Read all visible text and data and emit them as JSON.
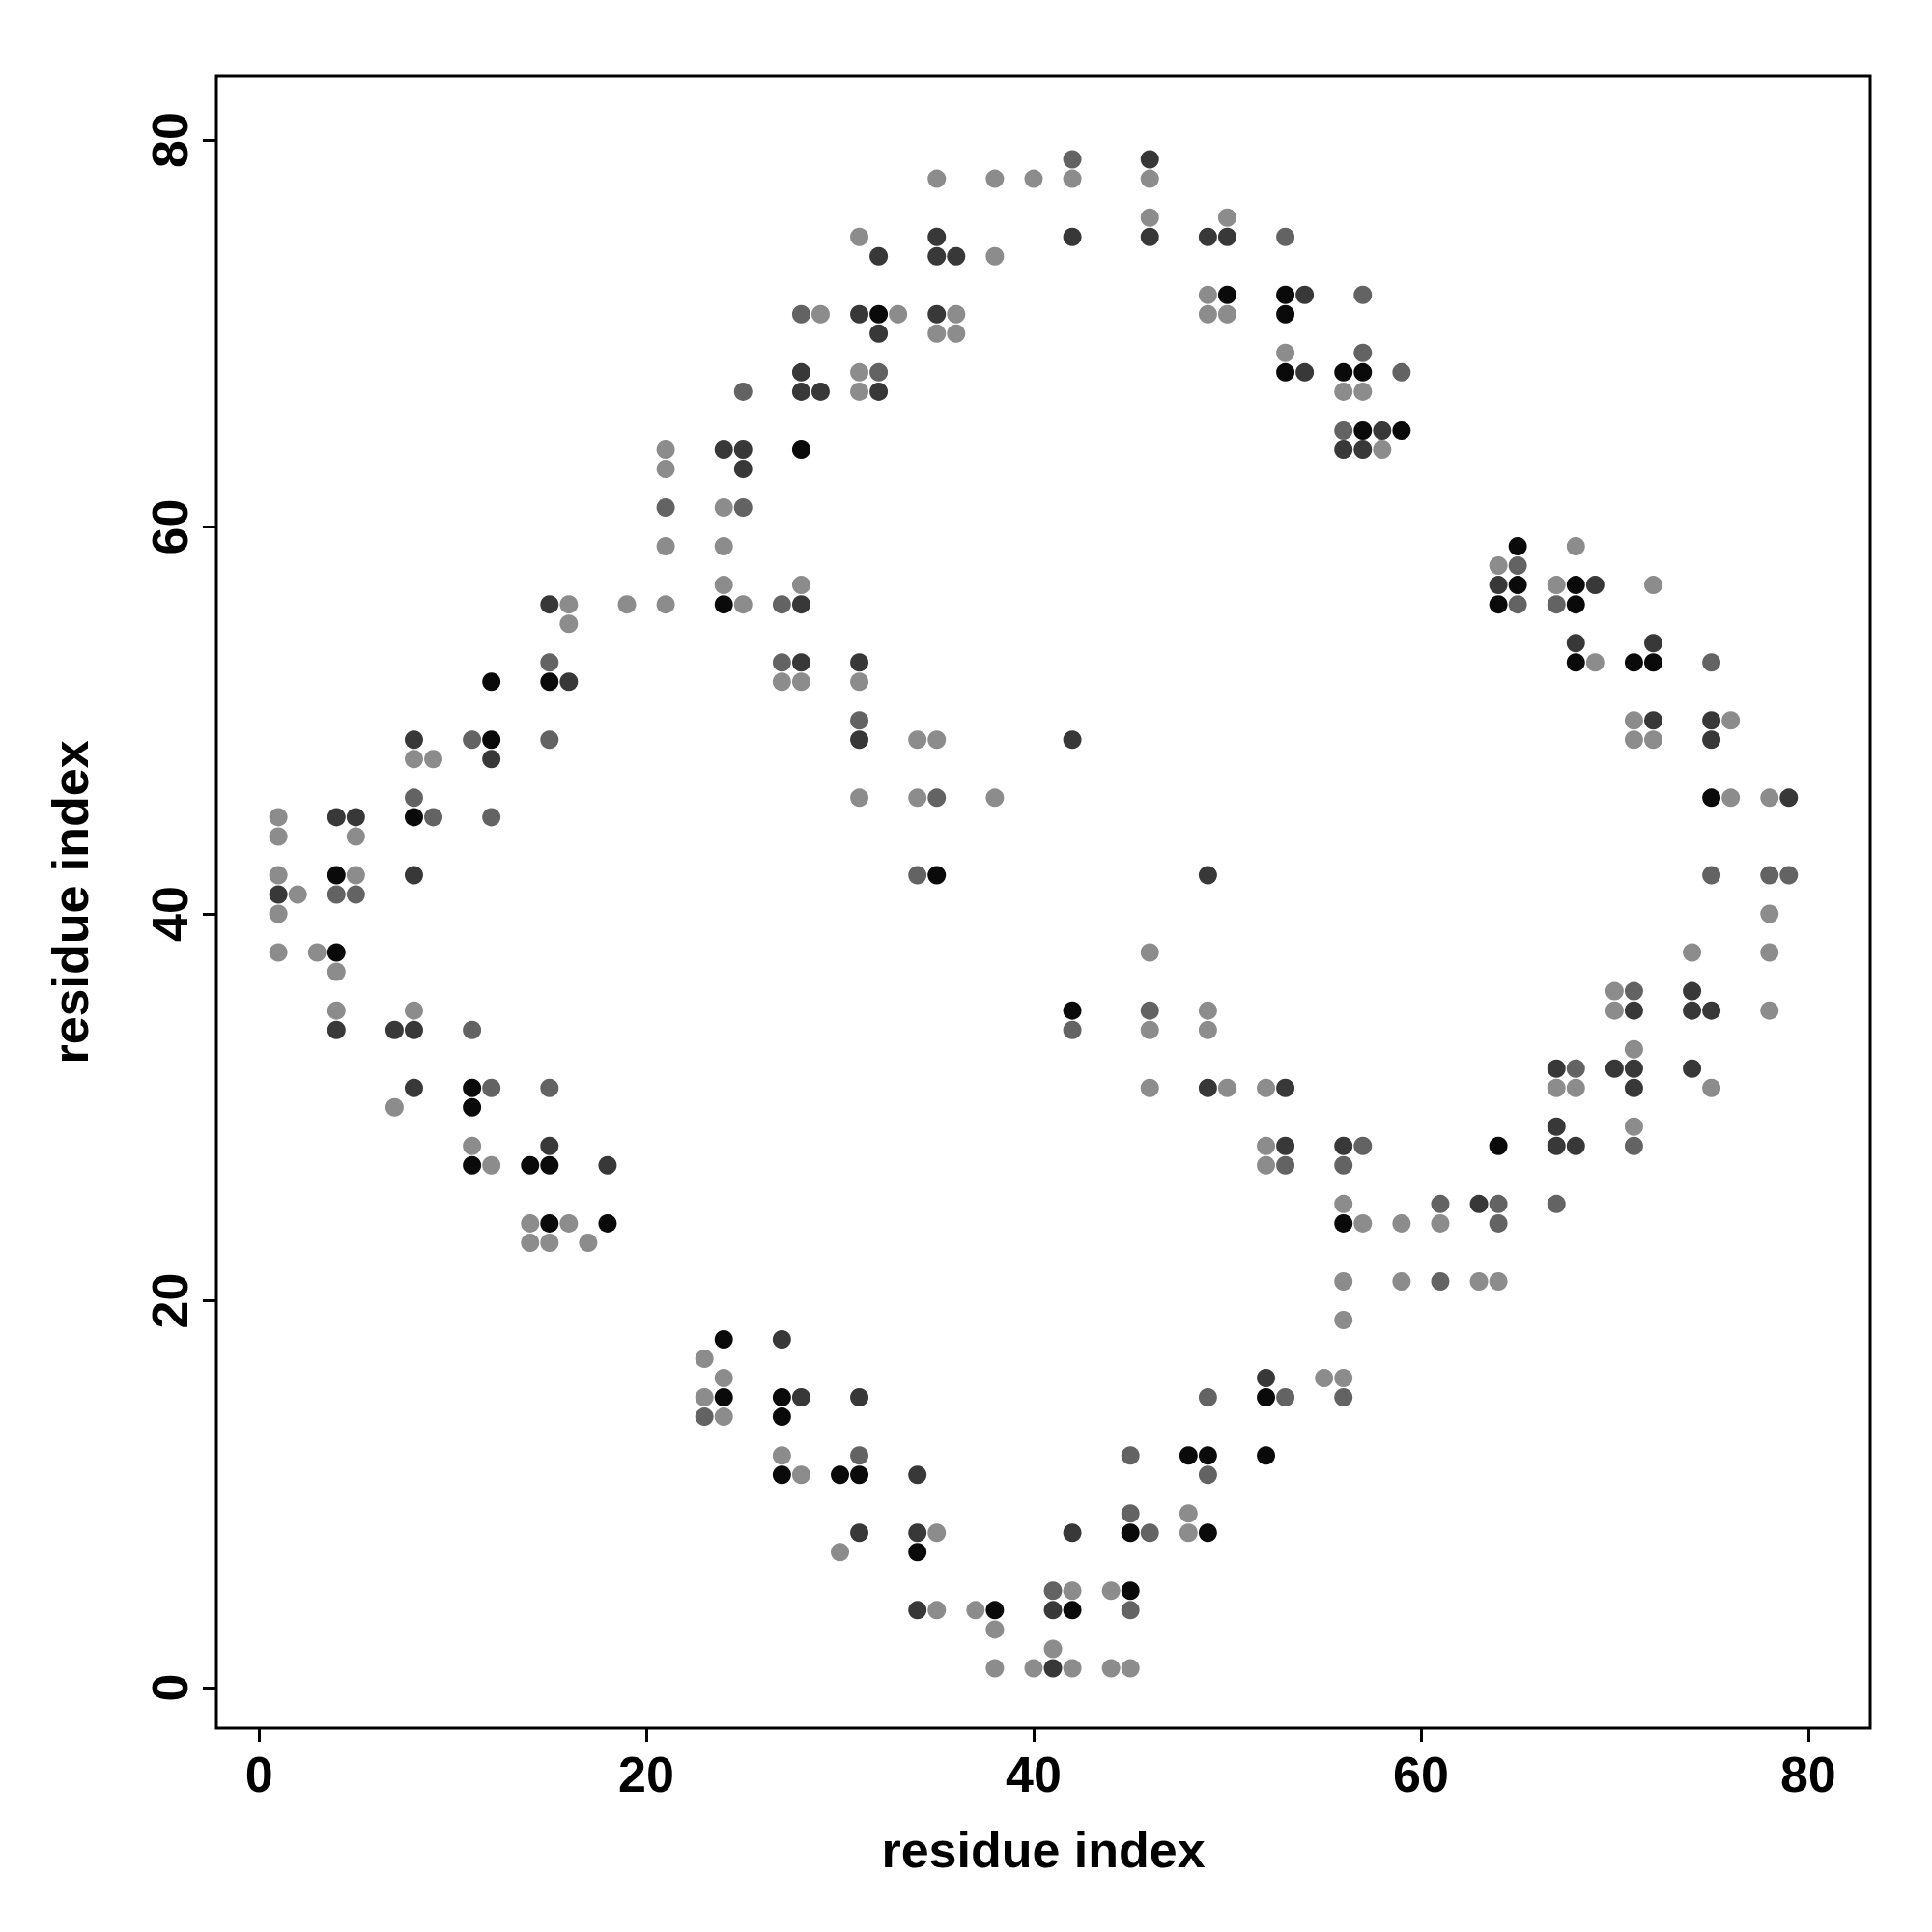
{
  "chart_data": {
    "type": "scatter",
    "xlabel": "residue index",
    "ylabel": "residue index",
    "xlim": [
      -2.2,
      83.2
    ],
    "ylim": [
      -2.1,
      83.3
    ],
    "xticks": [
      0,
      20,
      40,
      60,
      80
    ],
    "yticks": [
      0,
      20,
      40,
      60,
      80
    ],
    "grid": false,
    "marker": "circle",
    "series": [
      {
        "color": "#8c8c8c",
        "x": [
          1,
          1,
          1,
          1,
          1,
          2,
          3,
          4,
          4,
          5,
          5,
          7,
          8,
          8,
          9,
          11,
          12,
          14,
          14,
          15,
          16,
          16,
          16,
          17,
          19,
          21,
          21,
          21,
          21,
          23,
          23,
          24,
          24,
          24,
          24,
          24,
          25,
          27,
          27,
          28,
          28,
          28,
          29,
          30,
          31,
          31,
          31,
          31,
          31,
          33,
          34,
          34,
          35,
          35,
          35,
          35,
          35,
          36,
          36,
          37,
          38,
          38,
          38,
          38,
          38,
          40,
          40,
          41,
          42,
          42,
          42,
          44,
          44,
          45,
          46,
          46,
          46,
          46,
          46,
          48,
          48,
          49,
          49,
          49,
          49,
          50,
          50,
          50,
          52,
          52,
          52,
          53,
          55,
          56,
          56,
          56,
          56,
          56,
          57,
          57,
          58,
          59,
          59,
          61,
          63,
          64,
          64,
          67,
          67,
          68,
          68,
          69,
          70,
          70,
          71,
          71,
          71,
          71,
          72,
          72,
          74,
          75,
          76,
          76,
          78,
          78,
          78,
          78
        ],
        "values": [
          45,
          44,
          42,
          40,
          38,
          41,
          38,
          37,
          35,
          44,
          42,
          30,
          48,
          35,
          48,
          28,
          27,
          24,
          23,
          23,
          56,
          55,
          24,
          23,
          56,
          64,
          63,
          59,
          56,
          17,
          15,
          61,
          59,
          57,
          16,
          14,
          56,
          52,
          12,
          57,
          52,
          11,
          71,
          7,
          75,
          68,
          67,
          52,
          46,
          71,
          49,
          46,
          78,
          70,
          49,
          8,
          4,
          71,
          70,
          4,
          78,
          74,
          46,
          3,
          1,
          78,
          1,
          2,
          78,
          5,
          1,
          5,
          1,
          1,
          78,
          76,
          38,
          34,
          31,
          9,
          8,
          72,
          71,
          35,
          34,
          76,
          71,
          31,
          31,
          28,
          27,
          69,
          16,
          67,
          25,
          21,
          19,
          16,
          67,
          24,
          64,
          24,
          21,
          24,
          21,
          58,
          21,
          57,
          31,
          59,
          31,
          53,
          36,
          35,
          33,
          29,
          50,
          49,
          57,
          49,
          38,
          31,
          50,
          46,
          46,
          40,
          38,
          35
        ]
      },
      {
        "color": "#636363",
        "x": [
          4,
          5,
          8,
          9,
          11,
          11,
          12,
          12,
          15,
          15,
          15,
          21,
          23,
          25,
          25,
          27,
          27,
          28,
          31,
          31,
          32,
          34,
          35,
          41,
          42,
          42,
          45,
          45,
          45,
          46,
          46,
          49,
          49,
          53,
          53,
          53,
          56,
          56,
          56,
          57,
          57,
          57,
          59,
          61,
          61,
          64,
          64,
          65,
          65,
          67,
          67,
          68,
          71,
          71,
          75,
          75,
          78,
          79
        ],
        "values": [
          41,
          41,
          46,
          45,
          49,
          34,
          45,
          31,
          53,
          49,
          31,
          61,
          14,
          67,
          61,
          56,
          53,
          71,
          50,
          12,
          68,
          42,
          46,
          5,
          79,
          34,
          12,
          9,
          4,
          35,
          8,
          15,
          11,
          75,
          27,
          15,
          65,
          27,
          15,
          72,
          69,
          28,
          68,
          25,
          21,
          25,
          24,
          58,
          56,
          56,
          25,
          32,
          36,
          28,
          53,
          42,
          42,
          42
        ]
      },
      {
        "color": "#383838",
        "x": [
          1,
          4,
          4,
          5,
          7,
          8,
          8,
          8,
          8,
          12,
          15,
          15,
          16,
          18,
          24,
          25,
          25,
          27,
          28,
          28,
          28,
          28,
          28,
          29,
          31,
          31,
          31,
          31,
          31,
          32,
          32,
          32,
          34,
          34,
          34,
          35,
          35,
          35,
          36,
          41,
          41,
          42,
          42,
          42,
          46,
          46,
          49,
          49,
          49,
          50,
          52,
          53,
          53,
          54,
          54,
          56,
          56,
          57,
          58,
          63,
          64,
          67,
          67,
          67,
          68,
          68,
          69,
          70,
          71,
          71,
          71,
          72,
          72,
          74,
          74,
          74,
          75,
          75,
          75,
          79
        ],
        "values": [
          41,
          45,
          34,
          45,
          34,
          49,
          42,
          34,
          31,
          48,
          56,
          28,
          52,
          27,
          64,
          64,
          63,
          18,
          68,
          67,
          56,
          53,
          15,
          67,
          71,
          53,
          49,
          15,
          8,
          74,
          70,
          67,
          11,
          8,
          4,
          75,
          74,
          71,
          74,
          4,
          1,
          75,
          49,
          8,
          79,
          75,
          75,
          42,
          31,
          75,
          16,
          31,
          28,
          72,
          68,
          64,
          28,
          64,
          65,
          25,
          57,
          29,
          28,
          32,
          54,
          28,
          57,
          32,
          35,
          32,
          31,
          54,
          50,
          36,
          35,
          32,
          50,
          49,
          35,
          46
        ]
      },
      {
        "color": "#0a0a0a",
        "x": [
          4,
          4,
          8,
          11,
          11,
          11,
          12,
          12,
          14,
          15,
          15,
          15,
          18,
          24,
          24,
          24,
          27,
          27,
          27,
          28,
          30,
          31,
          32,
          34,
          35,
          38,
          42,
          42,
          45,
          45,
          48,
          49,
          49,
          50,
          52,
          52,
          53,
          53,
          53,
          56,
          56,
          57,
          57,
          59,
          64,
          64,
          65,
          65,
          68,
          68,
          68,
          71,
          72,
          75
        ],
        "values": [
          42,
          38,
          45,
          31,
          30,
          27,
          52,
          49,
          27,
          52,
          27,
          24,
          24,
          56,
          18,
          15,
          15,
          14,
          11,
          64,
          11,
          11,
          71,
          7,
          42,
          4,
          35,
          4,
          8,
          5,
          12,
          12,
          8,
          72,
          15,
          12,
          72,
          71,
          68,
          68,
          24,
          68,
          65,
          65,
          56,
          28,
          59,
          57,
          57,
          56,
          53,
          53,
          53,
          46
        ]
      }
    ]
  }
}
